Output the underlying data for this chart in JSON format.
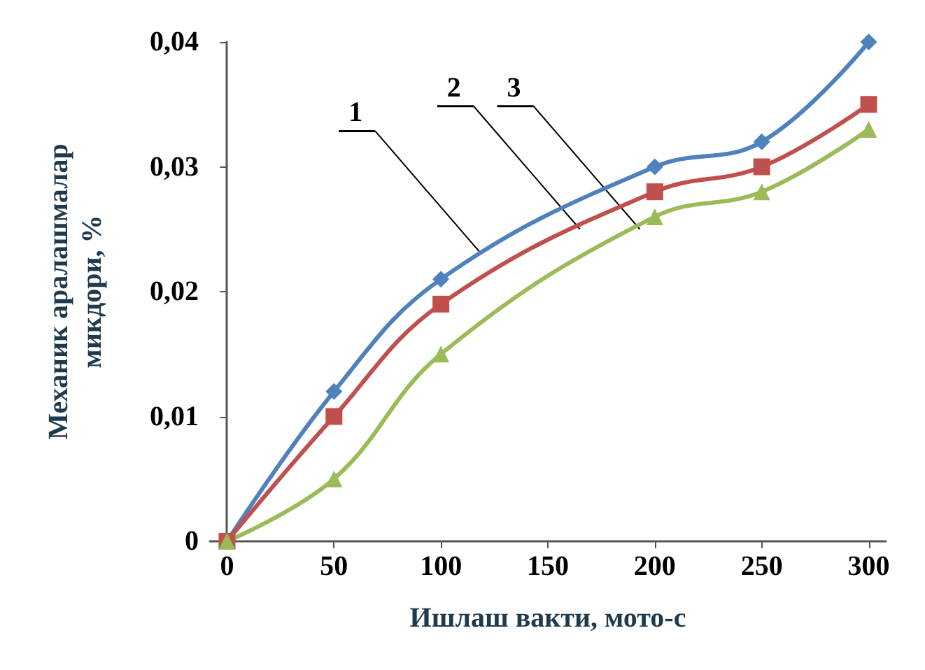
{
  "chart_data": {
    "type": "line",
    "xlabel": "Ишлаш вакти, мото-с",
    "ylabel": "Механик аралашмалар\nмикдори, %",
    "x": [
      0,
      50,
      100,
      200,
      250,
      300
    ],
    "series": [
      {
        "color": "#4f81bd",
        "marker": "diamond",
        "values": [
          0,
          0.012,
          0.021,
          0.03,
          0.032,
          0.04
        ]
      },
      {
        "color": "#c0504d",
        "marker": "square",
        "values": [
          0,
          0.01,
          0.019,
          0.028,
          0.03,
          0.035
        ]
      },
      {
        "color": "#9bbb59",
        "marker": "triangle",
        "values": [
          0,
          0.005,
          0.015,
          0.026,
          0.028,
          0.033
        ]
      }
    ],
    "annotations": [
      {
        "text": "1",
        "x": 119,
        "y": 0.023
      },
      {
        "text": "2",
        "x": 165,
        "y": 0.025
      },
      {
        "text": "3",
        "x": 193,
        "y": 0.025
      }
    ],
    "xlim": [
      -8,
      308
    ],
    "ylim": [
      0,
      0.04
    ],
    "xticks": [
      0,
      50,
      100,
      150,
      200,
      250,
      300
    ],
    "yticks": [
      0,
      {
        "value": 0.01,
        "label": "0,01"
      },
      {
        "value": 0.02,
        "label": "0,02"
      },
      {
        "value": 0.03,
        "label": "0,03"
      },
      {
        "value": 0.04,
        "label": "0,04"
      }
    ],
    "grid": false,
    "line_style": "solid"
  }
}
